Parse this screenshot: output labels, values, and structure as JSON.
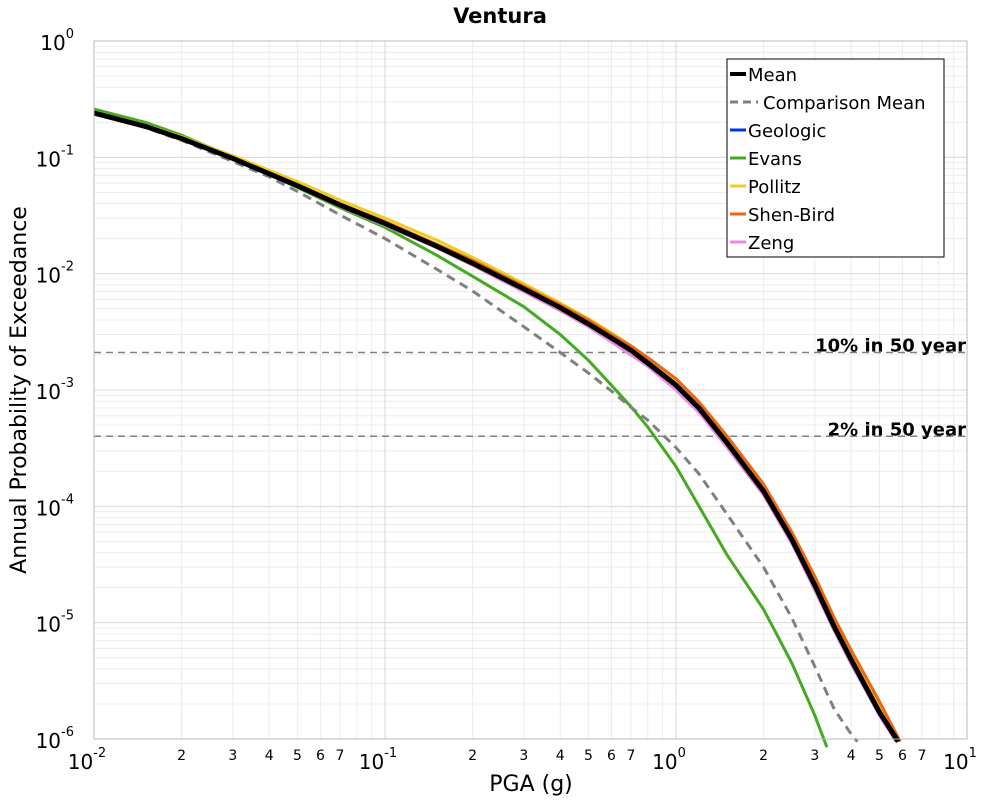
{
  "chart_data": {
    "type": "line",
    "title": "Ventura",
    "xlabel": "PGA (g)",
    "ylabel": "Annual Probability of Exceedance",
    "xscale": "log",
    "yscale": "log",
    "xlim": [
      0.01,
      10
    ],
    "ylim": [
      1e-06,
      1
    ],
    "grid": true,
    "legend_position": "top-right",
    "x_major_ticks": [
      {
        "value": 0.01,
        "base": "10",
        "exp": "-2"
      },
      {
        "value": 0.1,
        "base": "10",
        "exp": "-1"
      },
      {
        "value": 1,
        "base": "10",
        "exp": "0"
      },
      {
        "value": 10,
        "base": "10",
        "exp": "1"
      }
    ],
    "y_major_ticks": [
      {
        "value": 1,
        "base": "10",
        "exp": "0"
      },
      {
        "value": 0.1,
        "base": "10",
        "exp": "-1"
      },
      {
        "value": 0.01,
        "base": "10",
        "exp": "-2"
      },
      {
        "value": 0.001,
        "base": "10",
        "exp": "-3"
      },
      {
        "value": 0.0001,
        "base": "10",
        "exp": "-4"
      },
      {
        "value": 1e-05,
        "base": "10",
        "exp": "-5"
      },
      {
        "value": 1e-06,
        "base": "10",
        "exp": "-6"
      }
    ],
    "x_minor_tick_labels": [
      {
        "value": 0.02,
        "label": "2"
      },
      {
        "value": 0.03,
        "label": "3"
      },
      {
        "value": 0.04,
        "label": "4"
      },
      {
        "value": 0.05,
        "label": "5"
      },
      {
        "value": 0.06,
        "label": "6"
      },
      {
        "value": 0.07,
        "label": "7"
      },
      {
        "value": 0.2,
        "label": "2"
      },
      {
        "value": 0.3,
        "label": "3"
      },
      {
        "value": 0.4,
        "label": "4"
      },
      {
        "value": 0.5,
        "label": "5"
      },
      {
        "value": 0.6,
        "label": "6"
      },
      {
        "value": 0.7,
        "label": "7"
      },
      {
        "value": 2,
        "label": "2"
      },
      {
        "value": 3,
        "label": "3"
      },
      {
        "value": 4,
        "label": "4"
      },
      {
        "value": 5,
        "label": "5"
      },
      {
        "value": 6,
        "label": "6"
      },
      {
        "value": 7,
        "label": "7"
      }
    ],
    "reference_lines": [
      {
        "label": "10% in 50 year",
        "y": 0.0021,
        "color": "#808080",
        "dash": "dashed"
      },
      {
        "label": "2% in 50 year",
        "y": 0.0004,
        "color": "#808080",
        "dash": "dashed"
      }
    ],
    "series": [
      {
        "name": "Geologic",
        "color": "#0033ee",
        "width": 3,
        "dash": "solid",
        "x": [
          0.01,
          0.015,
          0.02,
          0.03,
          0.05,
          0.07,
          0.1,
          0.15,
          0.2,
          0.3,
          0.4,
          0.5,
          0.6,
          0.7,
          0.8,
          1.0,
          1.2,
          1.5,
          2.0,
          2.5,
          3.0,
          3.5,
          4.0,
          5.0,
          5.8
        ],
        "y": [
          0.24,
          0.185,
          0.145,
          0.098,
          0.057,
          0.039,
          0.027,
          0.0175,
          0.0125,
          0.0075,
          0.0052,
          0.0038,
          0.0029,
          0.0023,
          0.0018,
          0.00115,
          0.00072,
          0.00036,
          0.00014,
          5.5e-05,
          2.2e-05,
          9.5e-06,
          5e-06,
          1.8e-06,
          9.5e-07
        ]
      },
      {
        "name": "Evans",
        "color": "#44aa22",
        "width": 3,
        "dash": "solid",
        "x": [
          0.01,
          0.015,
          0.02,
          0.03,
          0.05,
          0.07,
          0.1,
          0.15,
          0.2,
          0.3,
          0.4,
          0.5,
          0.6,
          0.7,
          0.8,
          1.0,
          1.2,
          1.5,
          2.0,
          2.5,
          3.0,
          3.3
        ],
        "y": [
          0.26,
          0.2,
          0.155,
          0.1,
          0.055,
          0.037,
          0.025,
          0.0145,
          0.0095,
          0.0052,
          0.003,
          0.0018,
          0.0011,
          0.00072,
          0.00048,
          0.00022,
          0.0001,
          3.8e-05,
          1.3e-05,
          4.5e-06,
          1.6e-06,
          8.5e-07
        ]
      },
      {
        "name": "Pollitz",
        "color": "#eecc22",
        "width": 3,
        "dash": "solid",
        "x": [
          0.01,
          0.015,
          0.02,
          0.03,
          0.05,
          0.07,
          0.1,
          0.15,
          0.2,
          0.3,
          0.4,
          0.5,
          0.6,
          0.7,
          0.8,
          1.0,
          1.2,
          1.5,
          2.0,
          2.5,
          3.0,
          3.5,
          4.0,
          5.0,
          5.8
        ],
        "y": [
          0.245,
          0.19,
          0.15,
          0.103,
          0.062,
          0.043,
          0.03,
          0.0195,
          0.0138,
          0.0082,
          0.0056,
          0.0041,
          0.0031,
          0.0024,
          0.0019,
          0.00122,
          0.00076,
          0.00038,
          0.00015,
          5.8e-05,
          2.3e-05,
          1e-05,
          5.2e-06,
          1.9e-06,
          9.5e-07
        ]
      },
      {
        "name": "Shen-Bird",
        "color": "#ee6611",
        "width": 3,
        "dash": "solid",
        "x": [
          0.01,
          0.015,
          0.02,
          0.03,
          0.05,
          0.07,
          0.1,
          0.15,
          0.2,
          0.3,
          0.4,
          0.5,
          0.6,
          0.7,
          0.8,
          1.0,
          1.2,
          1.5,
          2.0,
          2.5,
          3.0,
          3.5,
          4.0,
          5.0,
          5.9
        ],
        "y": [
          0.24,
          0.185,
          0.145,
          0.098,
          0.058,
          0.04,
          0.028,
          0.018,
          0.013,
          0.0078,
          0.0054,
          0.004,
          0.003,
          0.0024,
          0.0019,
          0.00125,
          0.00079,
          0.0004,
          0.000155,
          6e-05,
          2.5e-05,
          1.1e-05,
          5.8e-06,
          2.1e-06,
          9.5e-07
        ]
      },
      {
        "name": "Zeng",
        "color": "#ee88dd",
        "width": 3,
        "dash": "solid",
        "x": [
          0.01,
          0.015,
          0.02,
          0.03,
          0.05,
          0.07,
          0.1,
          0.15,
          0.2,
          0.3,
          0.4,
          0.5,
          0.6,
          0.7,
          0.8,
          1.0,
          1.2,
          1.5,
          2.0,
          2.5,
          3.0,
          3.5,
          4.0,
          5.0,
          5.7
        ],
        "y": [
          0.24,
          0.185,
          0.145,
          0.098,
          0.056,
          0.038,
          0.026,
          0.0168,
          0.0118,
          0.007,
          0.0048,
          0.0035,
          0.0026,
          0.002,
          0.0016,
          0.001,
          0.00064,
          0.00032,
          0.000125,
          4.8e-05,
          1.9e-05,
          8.5e-06,
          4.4e-06,
          1.6e-06,
          9.5e-07
        ]
      },
      {
        "name": "Comparison Mean",
        "color": "#808080",
        "width": 3,
        "dash": "dashed",
        "x": [
          0.01,
          0.015,
          0.02,
          0.03,
          0.04,
          0.05,
          0.07,
          0.1,
          0.15,
          0.2,
          0.3,
          0.4,
          0.5,
          0.6,
          0.7,
          0.8,
          1.0,
          1.2,
          1.5,
          2.0,
          2.5,
          3.0,
          3.5,
          4.0,
          4.2
        ],
        "y": [
          0.24,
          0.18,
          0.14,
          0.092,
          0.068,
          0.051,
          0.032,
          0.02,
          0.011,
          0.0071,
          0.0035,
          0.0021,
          0.0014,
          0.00098,
          0.00071,
          0.00055,
          0.00032,
          0.00019,
          8.5e-05,
          3e-05,
          1.1e-05,
          4.2e-06,
          1.8e-06,
          1.1e-06,
          9.5e-07
        ]
      },
      {
        "name": "Mean",
        "color": "#000000",
        "width": 5,
        "dash": "solid",
        "x": [
          0.01,
          0.015,
          0.02,
          0.03,
          0.05,
          0.07,
          0.1,
          0.15,
          0.2,
          0.3,
          0.4,
          0.5,
          0.6,
          0.7,
          0.8,
          1.0,
          1.2,
          1.5,
          2.0,
          2.5,
          3.0,
          3.5,
          4.0,
          5.0,
          5.8
        ],
        "y": [
          0.24,
          0.185,
          0.145,
          0.098,
          0.057,
          0.039,
          0.027,
          0.0173,
          0.0123,
          0.0074,
          0.0051,
          0.0037,
          0.0028,
          0.0022,
          0.0017,
          0.0011,
          0.0007,
          0.00035,
          0.000135,
          5.2e-05,
          2.1e-05,
          9.2e-06,
          4.8e-06,
          1.7e-06,
          9.5e-07
        ]
      }
    ],
    "legend_entries": [
      {
        "name": "Mean",
        "color": "#000000",
        "width": 4,
        "dash": "solid"
      },
      {
        "name": "Comparison Mean",
        "color": "#808080",
        "width": 3,
        "dash": "dashed"
      },
      {
        "name": "Geologic",
        "color": "#0033ee",
        "width": 3,
        "dash": "solid"
      },
      {
        "name": "Evans",
        "color": "#44aa22",
        "width": 3,
        "dash": "solid"
      },
      {
        "name": "Pollitz",
        "color": "#eecc22",
        "width": 3,
        "dash": "solid"
      },
      {
        "name": "Shen-Bird",
        "color": "#ee6611",
        "width": 3,
        "dash": "solid"
      },
      {
        "name": "Zeng",
        "color": "#ee88dd",
        "width": 3,
        "dash": "solid"
      }
    ]
  }
}
